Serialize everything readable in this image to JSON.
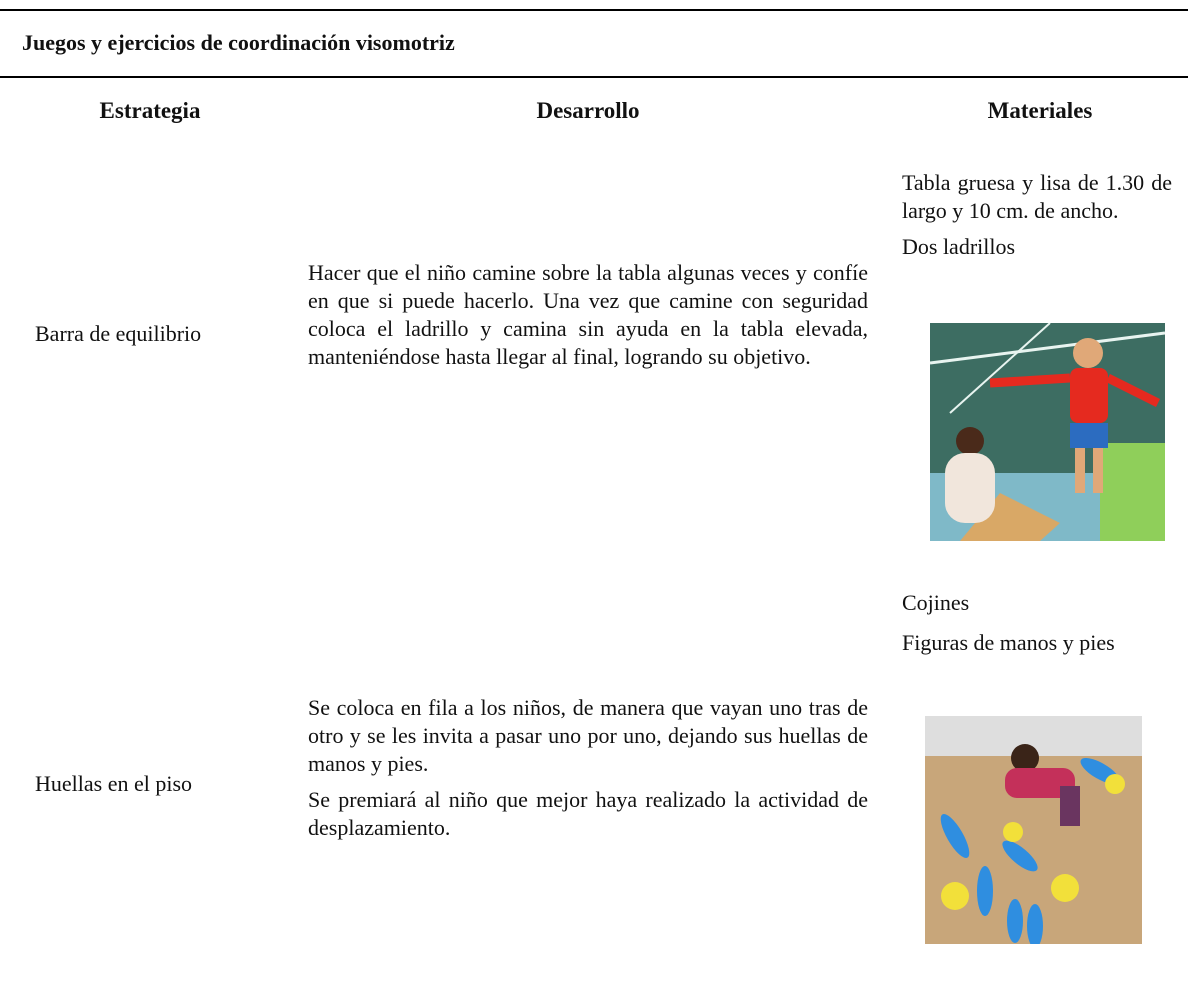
{
  "header": {
    "title": "Juegos y ejercicios de coordinación visomotriz"
  },
  "table": {
    "columns": [
      "Estrategia",
      "Desarrollo",
      "Materiales"
    ],
    "rows": [
      {
        "strategy": "Barra de equilibrio",
        "development": [
          "Hacer que el niño camine sobre la tabla algunas veces y confíe en que si puede hacerlo. Una vez que camine con seguridad coloca el ladrillo y camina sin ayuda en la tabla elevada, manteniéndose hasta llegar al final, logrando su objetivo."
        ],
        "materials": [
          "Tabla gruesa y lisa de 1.30 de largo y 10 cm. de ancho.",
          "Dos ladrillos"
        ]
      },
      {
        "strategy": "Huellas en el piso",
        "development": [
          "Se coloca en fila a los niños, de manera que vayan uno tras de otro y se les invita a pasar uno por uno, dejando sus huellas de manos y pies.",
          "Se premiará al niño que mejor haya realizado la actividad de desplazamiento."
        ],
        "materials": [
          "Cojines",
          "Figuras de manos y pies"
        ]
      }
    ]
  }
}
